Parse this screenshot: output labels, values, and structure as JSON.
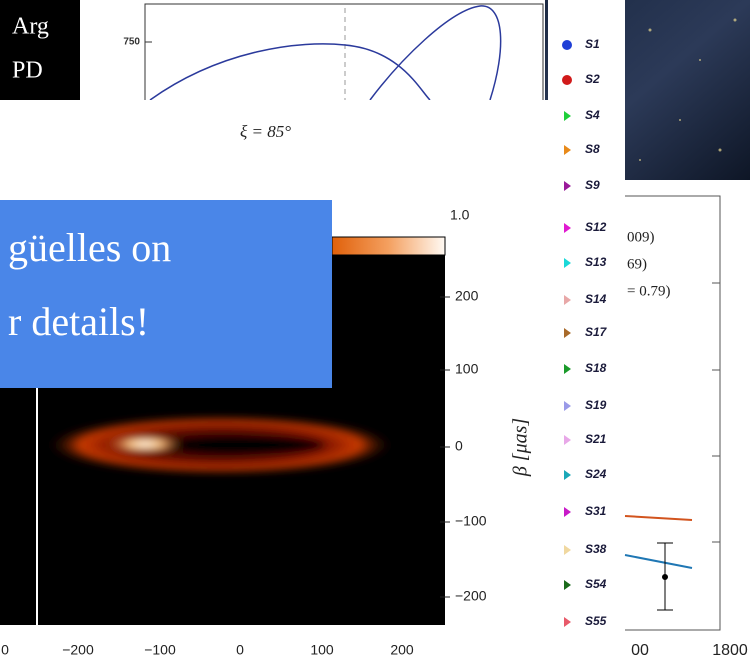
{
  "top_left_caption": {
    "lines": [
      "Arg",
      "PD"
    ]
  },
  "orbit_panel": {
    "y_tick": "750",
    "caption": "ξ = 85°"
  },
  "legend": {
    "items": [
      {
        "name": "S1",
        "color": "#1f3fd6"
      },
      {
        "name": "S2",
        "color": "#d11a1a"
      },
      {
        "name": "S4",
        "color": "#1fcf3a"
      },
      {
        "name": "S8",
        "color": "#e88a1a"
      },
      {
        "name": "S9",
        "color": "#9a1a9a"
      },
      {
        "name": "S12",
        "color": "#e01ad0"
      },
      {
        "name": "S13",
        "color": "#1ad8d8"
      },
      {
        "name": "S14",
        "color": "#e8a8a8"
      },
      {
        "name": "S17",
        "color": "#a86a2a"
      },
      {
        "name": "S18",
        "color": "#1a9a2a"
      },
      {
        "name": "S19",
        "color": "#9a9ae8"
      },
      {
        "name": "S21",
        "color": "#e8a8e8"
      },
      {
        "name": "S24",
        "color": "#1aa8b8"
      },
      {
        "name": "S31",
        "color": "#c81ac8"
      },
      {
        "name": "S38",
        "color": "#f0d8a0"
      },
      {
        "name": "S54",
        "color": "#1a6a1a"
      },
      {
        "name": "S55",
        "color": "#e85a6a"
      }
    ]
  },
  "banner": {
    "lines": [
      "güelles on",
      "r details!"
    ]
  },
  "image_panel": {
    "colorbar_max": "1.0",
    "y_ticks": [
      "200",
      "100",
      "0",
      "−100",
      "−200"
    ],
    "y_label": "β [μas]",
    "x_ticks": [
      "0",
      "−200",
      "−100",
      "0",
      "100",
      "200"
    ]
  },
  "right_panel": {
    "legend_fragments": [
      "009)",
      "69)",
      "= 0.79)"
    ],
    "x_ticks": [
      "00",
      "1800"
    ]
  }
}
